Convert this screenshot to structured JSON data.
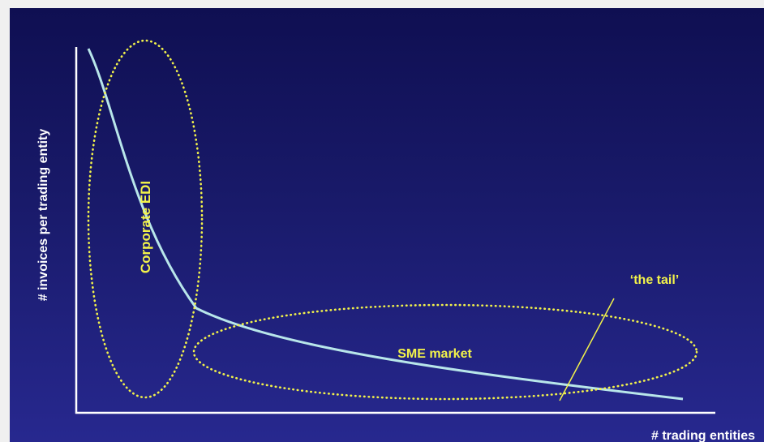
{
  "diagram": {
    "y_axis_label": "# invoices per trading entity",
    "x_axis_label": "# trading entities",
    "regions": {
      "corporate": "Corporate EDI",
      "sme": "SME market"
    },
    "tail_label": "‘the tail’"
  },
  "colors": {
    "background_top": "#0f0f52",
    "background_bottom": "#27288f",
    "curve": "#b8e6ea",
    "highlight": "#f2f24a",
    "axis": "#ffffff"
  }
}
